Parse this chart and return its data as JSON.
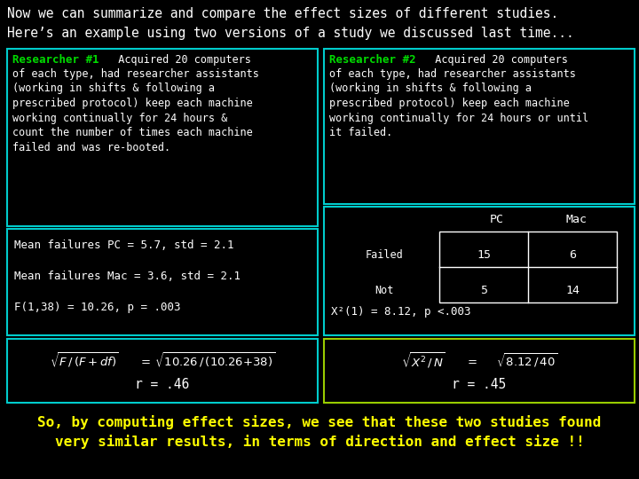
{
  "bg_color": "#000000",
  "title1": "Now we can summarize and compare the effect sizes of different studies.",
  "title1_color": "#ffffff",
  "title2": "Here’s an example using two versions of a study we discussed last time...",
  "title2_color": "#ffffff",
  "res1_label": "Researcher #1",
  "res1_label_color": "#00dd00",
  "res1_body": "  Acquired 20 computers\nof each type, had researcher assistants\n(working in shifts & following a\nprescribed protocol) keep each machine\nworking continually for 24 hours &\ncount the number of times each machine\nfailed and was re-booted.",
  "res1_box_color": "#00cccc",
  "res2_label": "Researcher #2",
  "res2_label_color": "#00dd00",
  "res2_body": "  Acquired 20 computers\nof each type, had researcher assistants\n(working in shifts & following a\nprescribed protocol) keep each machine\nworking continually for 24 hours or until\nit failed.",
  "res2_box_color": "#00cccc",
  "stats_line1": "Mean failures PC = 5.7, std = 2.1",
  "stats_line2": "Mean failures Mac = 3.6, std = 2.1",
  "stats_line3": "F(1,38) = 10.26, p = .003",
  "stats_color": "#ffffff",
  "stats_box_color": "#00cccc",
  "table_header_PC": "PC",
  "table_header_Mac": "Mac",
  "table_row1_label": "Failed",
  "table_row2_label": "Not",
  "table_data": [
    [
      15,
      6
    ],
    [
      5,
      14
    ]
  ],
  "table_color": "#ffffff",
  "chi_text": "X²(1) = 8.12, p <.003",
  "chi_color": "#ffffff",
  "chi_box_color": "#00cccc",
  "formula1_color": "#ffffff",
  "formula1_box_color": "#00cccc",
  "formula2_color": "#ffffff",
  "formula2_box_color": "#99cc00",
  "bottom_text1": "So, by computing effect sizes, we see that these two studies found",
  "bottom_text2": "very similar results, in terms of direction and effect size !!",
  "bottom_color": "#ffff00",
  "text_color": "#ffffff",
  "font_size_title": 10.5,
  "font_size_body": 8.5,
  "font_size_formula": 9.5,
  "font_size_bottom": 11.5
}
